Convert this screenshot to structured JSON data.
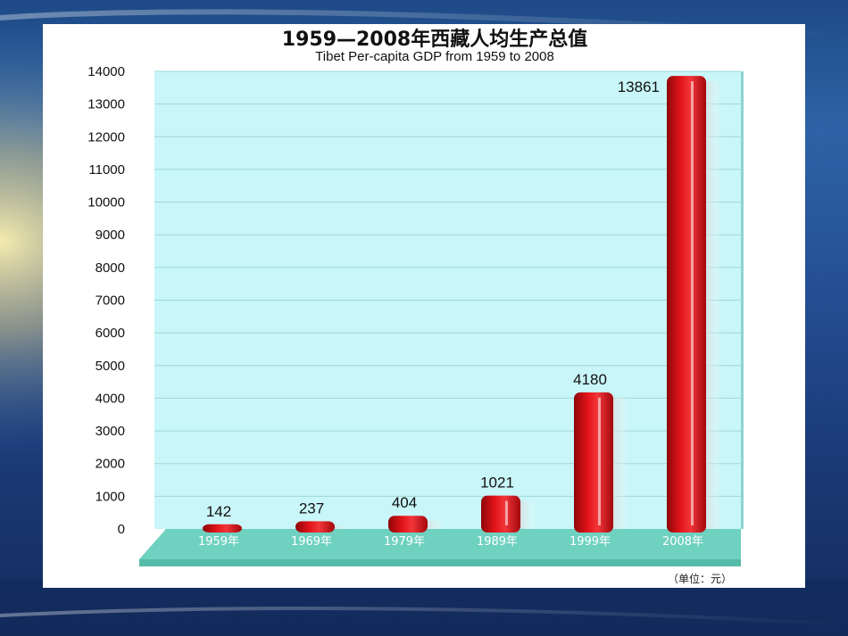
{
  "colors": {
    "plot_bg": "#c9f6f8",
    "floor": "#6fd1c0",
    "bar": "#d50f14",
    "grid": "#9fd9d6"
  },
  "chart_data": {
    "type": "bar",
    "title": "1959—2008年西藏人均生产总值",
    "subtitle": "Tibet Per-capita GDP from 1959 to 2008",
    "unit_note": "（单位：元）",
    "categories": [
      "1959年",
      "1969年",
      "1979年",
      "1989年",
      "1999年",
      "2008年"
    ],
    "values": [
      142,
      237,
      404,
      1021,
      4180,
      13861
    ],
    "data_labels": [
      "142",
      "237",
      "404",
      "1021",
      "4180",
      "13861"
    ],
    "ylim": [
      0,
      14000
    ],
    "yticks": [
      0,
      1000,
      2000,
      3000,
      4000,
      5000,
      6000,
      7000,
      8000,
      9000,
      10000,
      11000,
      12000,
      13000,
      14000
    ],
    "grid": true,
    "legend": "none"
  }
}
